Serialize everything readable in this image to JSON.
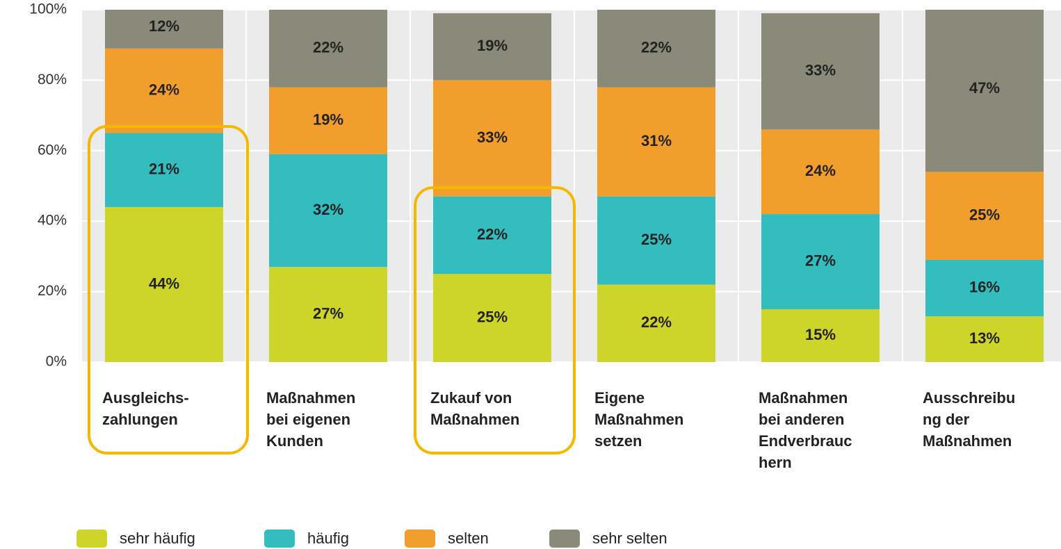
{
  "chart_data": {
    "type": "stacked_bar",
    "categories": [
      "Ausgleichs-\nzahlungen",
      "Maßnahmen\nbei eigenen\nKunden",
      "Zukauf von\nMaßnahmen",
      "Eigene\nMaßnahmen\nsetzen",
      "Maßnahmen\nbei anderen\nEndverbrauc\nhern",
      "Ausschreibu\nng der\nMaßnahmen"
    ],
    "series": [
      {
        "name": "sehr häufig",
        "color": "#cdd52a",
        "values": [
          44,
          27,
          25,
          22,
          15,
          13
        ],
        "value_labels": [
          "44%",
          "27%",
          "25%",
          "22%",
          "15%",
          "13%"
        ]
      },
      {
        "name": "häufig",
        "color": "#33bdbf",
        "values": [
          21,
          32,
          22,
          25,
          27,
          16
        ],
        "value_labels": [
          "21%",
          "32%",
          "22%",
          "25%",
          "27%",
          "16%"
        ]
      },
      {
        "name": "selten",
        "color": "#f29e2c",
        "values": [
          24,
          19,
          33,
          31,
          24,
          25
        ],
        "value_labels": [
          "24%",
          "19%",
          "33%",
          "31%",
          "24%",
          "25%"
        ]
      },
      {
        "name": "sehr selten",
        "color": "#8a8a7a",
        "values": [
          12,
          22,
          19,
          22,
          33,
          47
        ],
        "value_labels": [
          "12%",
          "22%",
          "19%",
          "22%",
          "33%",
          "47%"
        ]
      }
    ],
    "ylim": [
      0,
      100
    ],
    "yticks": [
      {
        "value": 0,
        "label": "0%"
      },
      {
        "value": 20,
        "label": "20%"
      },
      {
        "value": 40,
        "label": "40%"
      },
      {
        "value": 60,
        "label": "60%"
      },
      {
        "value": 80,
        "label": "80%"
      },
      {
        "value": 100,
        "label": "100%"
      }
    ],
    "grid": true
  }
}
